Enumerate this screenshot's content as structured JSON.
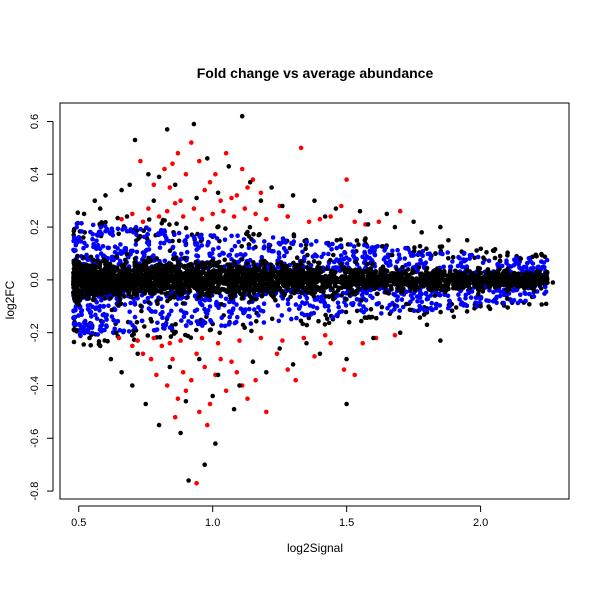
{
  "chart_data": {
    "type": "scatter",
    "title": "Fold change vs average abundance",
    "xlabel": "log2Signal",
    "ylabel": "log2FC",
    "xlim": [
      0.43,
      2.33
    ],
    "ylim": [
      -0.83,
      0.67
    ],
    "x_ticks": [
      0.5,
      1.0,
      1.5,
      2.0
    ],
    "x_tick_labels": [
      "0.5",
      "1.0",
      "1.5",
      "2.0"
    ],
    "y_ticks": [
      -0.8,
      -0.6,
      -0.4,
      -0.2,
      0.0,
      0.2,
      0.4,
      0.6
    ],
    "y_tick_labels": [
      "-0.8",
      "-0.6",
      "-0.4",
      "-0.2",
      "0.0",
      "0.2",
      "0.4",
      "0.6"
    ],
    "grid": false,
    "colors": {
      "not_significant": "#000000",
      "significant_small": "#0000ff",
      "significant_large": "#ff0000"
    },
    "series": [
      {
        "color": "#ff0000",
        "points": [
          [
            0.73,
            0.45
          ],
          [
            0.78,
            0.36
          ],
          [
            0.82,
            0.42
          ],
          [
            0.84,
            0.35
          ],
          [
            0.85,
            0.44
          ],
          [
            0.86,
            0.29
          ],
          [
            0.87,
            0.48
          ],
          [
            0.88,
            0.3
          ],
          [
            0.9,
            0.4
          ],
          [
            0.92,
            0.52
          ],
          [
            0.95,
            0.45
          ],
          [
            0.97,
            0.34
          ],
          [
            0.99,
            0.37
          ],
          [
            1.01,
            0.4
          ],
          [
            1.03,
            0.3
          ],
          [
            1.05,
            0.48
          ],
          [
            1.07,
            0.31
          ],
          [
            1.09,
            0.32
          ],
          [
            1.11,
            0.42
          ],
          [
            1.13,
            0.35
          ],
          [
            1.15,
            0.38
          ],
          [
            1.18,
            0.33
          ],
          [
            1.25,
            0.28
          ],
          [
            1.33,
            0.5
          ],
          [
            1.4,
            0.23
          ],
          [
            1.48,
            0.28
          ],
          [
            1.5,
            0.38
          ],
          [
            1.57,
            0.21
          ],
          [
            1.62,
            0.22
          ],
          [
            1.7,
            0.26
          ],
          [
            0.66,
            0.23
          ],
          [
            0.7,
            0.25
          ],
          [
            0.74,
            0.22
          ],
          [
            0.76,
            0.27
          ],
          [
            0.8,
            0.24
          ],
          [
            0.83,
            0.26
          ],
          [
            0.89,
            0.24
          ],
          [
            0.93,
            0.27
          ],
          [
            0.96,
            0.23
          ],
          [
            1.0,
            0.25
          ],
          [
            1.04,
            0.26
          ],
          [
            1.08,
            0.24
          ],
          [
            1.12,
            0.27
          ],
          [
            1.16,
            0.25
          ],
          [
            1.2,
            0.23
          ],
          [
            1.28,
            0.24
          ],
          [
            1.36,
            0.22
          ],
          [
            1.44,
            0.24
          ],
          [
            1.53,
            0.22
          ],
          [
            0.65,
            -0.22
          ],
          [
            0.7,
            -0.25
          ],
          [
            0.74,
            -0.28
          ],
          [
            0.77,
            -0.3
          ],
          [
            0.79,
            -0.36
          ],
          [
            0.81,
            -0.25
          ],
          [
            0.83,
            -0.4
          ],
          [
            0.85,
            -0.3
          ],
          [
            0.86,
            -0.52
          ],
          [
            0.87,
            -0.45
          ],
          [
            0.89,
            -0.35
          ],
          [
            0.9,
            -0.42
          ],
          [
            0.92,
            -0.38
          ],
          [
            0.94,
            -0.28
          ],
          [
            0.95,
            -0.5
          ],
          [
            0.97,
            -0.33
          ],
          [
            0.99,
            -0.47
          ],
          [
            1.01,
            -0.36
          ],
          [
            1.03,
            -0.3
          ],
          [
            1.05,
            -0.42
          ],
          [
            1.07,
            -0.31
          ],
          [
            1.09,
            -0.35
          ],
          [
            1.11,
            -0.4
          ],
          [
            1.13,
            -0.45
          ],
          [
            1.16,
            -0.38
          ],
          [
            1.2,
            -0.5
          ],
          [
            1.24,
            -0.28
          ],
          [
            1.28,
            -0.34
          ],
          [
            1.31,
            -0.38
          ],
          [
            1.38,
            -0.29
          ],
          [
            1.44,
            -0.24
          ],
          [
            1.49,
            -0.34
          ],
          [
            1.53,
            -0.36
          ],
          [
            1.56,
            -0.24
          ],
          [
            1.61,
            -0.22
          ],
          [
            1.68,
            -0.21
          ],
          [
            0.94,
            -0.77
          ],
          [
            0.98,
            -0.55
          ],
          [
            0.72,
            -0.23
          ],
          [
            0.78,
            -0.22
          ],
          [
            0.84,
            -0.24
          ],
          [
            0.88,
            -0.23
          ],
          [
            0.96,
            -0.22
          ],
          [
            1.02,
            -0.24
          ],
          [
            1.1,
            -0.23
          ],
          [
            1.18,
            -0.22
          ],
          [
            1.26,
            -0.23
          ],
          [
            1.34,
            -0.22
          ],
          [
            1.42,
            -0.21
          ]
        ]
      },
      {
        "color": "#000000",
        "points": [
          [
            0.83,
            0.57
          ],
          [
            0.93,
            0.59
          ],
          [
            1.11,
            0.62
          ],
          [
            0.71,
            0.53
          ],
          [
            0.6,
            0.32
          ],
          [
            0.56,
            0.3
          ],
          [
            0.52,
            0.25
          ],
          [
            0.58,
            0.27
          ],
          [
            0.66,
            0.34
          ],
          [
            0.69,
            0.36
          ],
          [
            0.76,
            0.4
          ],
          [
            0.8,
            0.39
          ],
          [
            0.98,
            0.46
          ],
          [
            1.06,
            0.43
          ],
          [
            1.14,
            0.37
          ],
          [
            1.22,
            0.35
          ],
          [
            1.3,
            0.32
          ],
          [
            1.38,
            0.3
          ],
          [
            1.46,
            0.27
          ],
          [
            1.55,
            0.26
          ],
          [
            1.65,
            0.25
          ],
          [
            1.75,
            0.22
          ],
          [
            1.85,
            0.2
          ],
          [
            1.95,
            0.15
          ],
          [
            2.05,
            0.11
          ],
          [
            2.15,
            0.08
          ],
          [
            2.22,
            0.03
          ],
          [
            2.27,
            -0.01
          ],
          [
            2.2,
            -0.04
          ],
          [
            2.1,
            -0.07
          ],
          [
            2.0,
            -0.1
          ],
          [
            1.9,
            -0.14
          ],
          [
            1.8,
            -0.17
          ],
          [
            1.7,
            -0.2
          ],
          [
            1.6,
            -0.22
          ],
          [
            1.5,
            -0.3
          ],
          [
            1.4,
            -0.28
          ],
          [
            1.3,
            -0.32
          ],
          [
            1.2,
            -0.35
          ],
          [
            1.1,
            -0.4
          ],
          [
            1.0,
            -0.44
          ],
          [
            0.9,
            -0.46
          ],
          [
            0.8,
            -0.55
          ],
          [
            0.75,
            -0.47
          ],
          [
            0.7,
            -0.4
          ],
          [
            0.66,
            -0.35
          ],
          [
            0.62,
            -0.3
          ],
          [
            0.58,
            -0.25
          ],
          [
            0.54,
            -0.22
          ],
          [
            0.88,
            -0.58
          ],
          [
            0.91,
            -0.76
          ],
          [
            0.97,
            -0.7
          ],
          [
            1.01,
            -0.62
          ],
          [
            1.08,
            -0.49
          ],
          [
            1.5,
            -0.47
          ],
          [
            1.85,
            -0.23
          ],
          [
            0.64,
            -0.2
          ],
          [
            0.72,
            -0.28
          ],
          [
            0.84,
            -0.33
          ],
          [
            0.95,
            -0.3
          ],
          [
            1.02,
            -0.36
          ],
          [
            1.15,
            -0.31
          ],
          [
            1.25,
            -0.26
          ],
          [
            1.35,
            -0.24
          ],
          [
            0.68,
            0.24
          ],
          [
            0.78,
            0.3
          ],
          [
            0.86,
            0.36
          ],
          [
            0.94,
            0.31
          ],
          [
            1.02,
            0.33
          ],
          [
            1.18,
            0.3
          ],
          [
            1.26,
            0.28
          ],
          [
            1.42,
            0.24
          ],
          [
            1.58,
            0.21
          ],
          [
            1.68,
            0.2
          ],
          [
            1.78,
            0.18
          ],
          [
            1.88,
            0.15
          ]
        ]
      }
    ],
    "generated_series": [
      {
        "color": "#000000",
        "count": 3000,
        "band_center": 0.0,
        "spread": [
          0.07,
          0.025
        ],
        "x_weight": "left"
      },
      {
        "color": "#0000ff",
        "count": 1200,
        "band_center": 0.0,
        "band_inner": [
          0.05,
          0.02
        ],
        "band_outer": [
          0.22,
          0.08
        ],
        "x_weight": "left"
      },
      {
        "color": "#000000",
        "count": 260,
        "band_center": 0.0,
        "band_inner": [
          0.16,
          0.06
        ],
        "band_outer": [
          0.26,
          0.1
        ],
        "x_weight": "left"
      }
    ]
  }
}
